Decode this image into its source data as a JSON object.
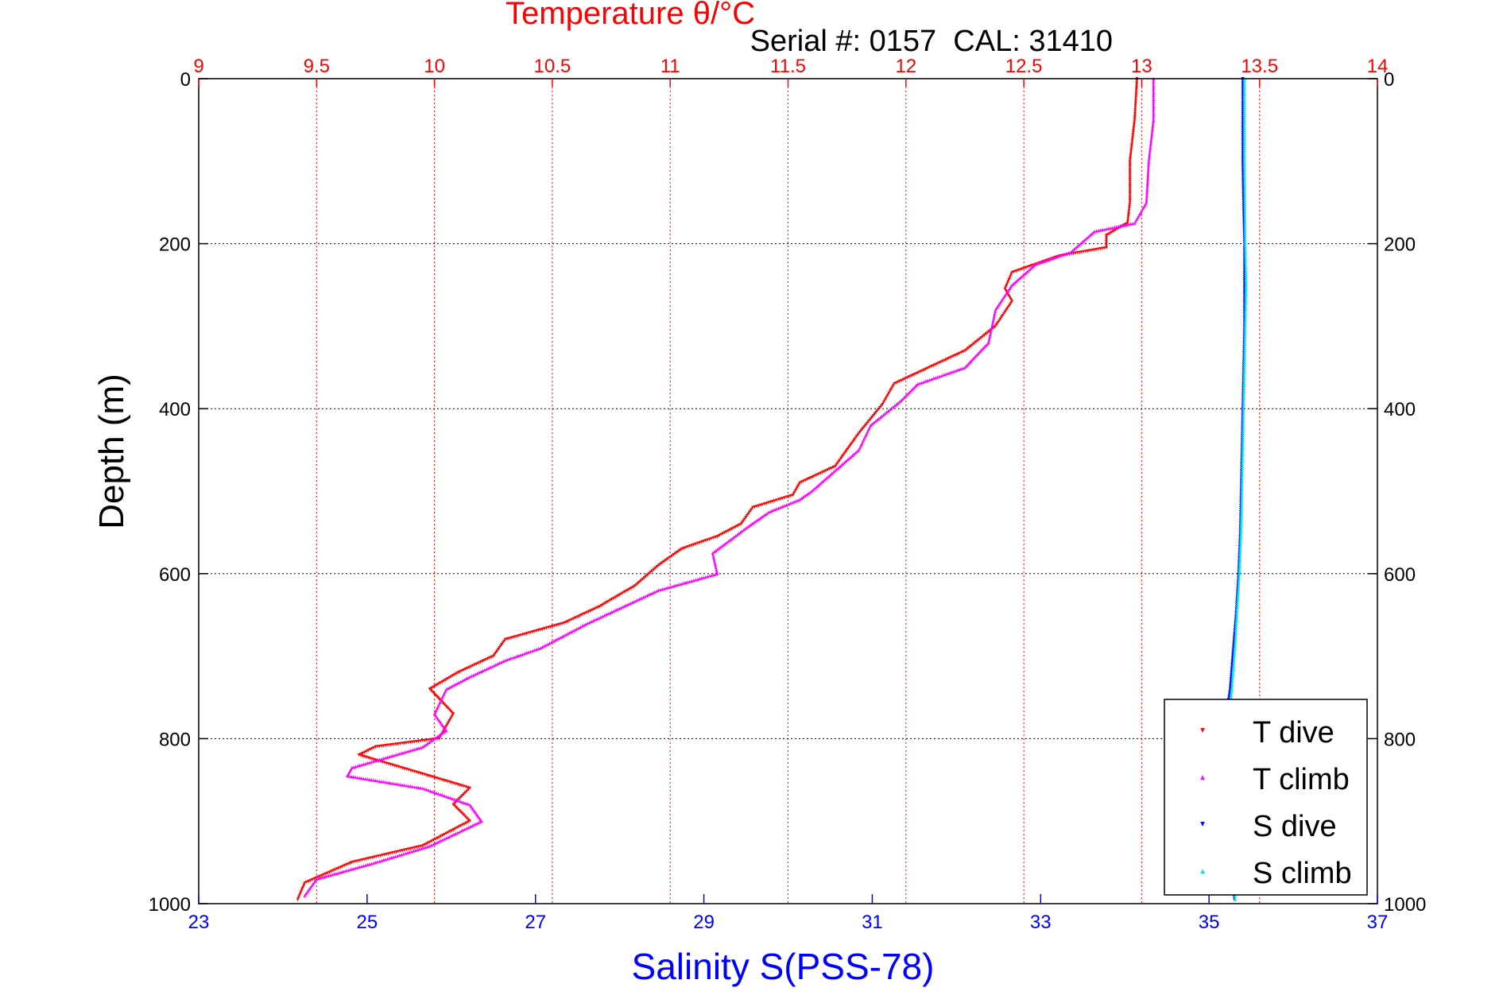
{
  "chart_data": {
    "type": "scatter",
    "title": "Temperature θ/°C",
    "subtitle": "Serial #: 0157  CAL: 31410",
    "ylabel": "Depth (m)",
    "xlabel": "Salinity S(PSS-78)",
    "temperature_axis": {
      "label": "Temperature θ/°C",
      "range": [
        9,
        14
      ],
      "ticks": [
        9,
        9.5,
        10,
        10.5,
        11,
        11.5,
        12,
        12.5,
        13,
        13.5,
        14
      ],
      "tick_labels": [
        "9",
        "9.5",
        "10",
        "10.5",
        "11",
        "11.5",
        "12",
        "12.5",
        "13",
        "13.5",
        "14"
      ],
      "color": "#ff0000"
    },
    "salinity_axis": {
      "label": "Salinity S(PSS-78)",
      "range": [
        23,
        37
      ],
      "ticks": [
        23,
        25,
        27,
        29,
        31,
        33,
        35,
        37
      ],
      "tick_labels": [
        "23",
        "25",
        "27",
        "29",
        "31",
        "33",
        "35",
        "37"
      ],
      "color": "#0000ff"
    },
    "depth_axis": {
      "label": "Depth (m)",
      "range": [
        0,
        1000
      ],
      "reversed": true,
      "ticks": [
        0,
        200,
        400,
        600,
        800,
        1000
      ],
      "tick_labels": [
        "0",
        "200",
        "400",
        "600",
        "800",
        "1000"
      ]
    },
    "grid": true,
    "legend_position": "bottom-right",
    "series": [
      {
        "name": "T dive",
        "axis": "temperature",
        "color": "#ff0000",
        "marker": "triangle-down",
        "points": [
          [
            12.98,
            0
          ],
          [
            12.97,
            50
          ],
          [
            12.95,
            100
          ],
          [
            12.95,
            150
          ],
          [
            12.94,
            175
          ],
          [
            12.85,
            190
          ],
          [
            12.85,
            205
          ],
          [
            12.65,
            215
          ],
          [
            12.45,
            235
          ],
          [
            12.42,
            255
          ],
          [
            12.45,
            270
          ],
          [
            12.38,
            300
          ],
          [
            12.25,
            330
          ],
          [
            12.1,
            350
          ],
          [
            11.95,
            370
          ],
          [
            11.9,
            395
          ],
          [
            11.8,
            430
          ],
          [
            11.7,
            470
          ],
          [
            11.55,
            490
          ],
          [
            11.52,
            505
          ],
          [
            11.35,
            520
          ],
          [
            11.3,
            540
          ],
          [
            11.2,
            555
          ],
          [
            11.05,
            570
          ],
          [
            10.95,
            590
          ],
          [
            10.85,
            615
          ],
          [
            10.7,
            640
          ],
          [
            10.55,
            660
          ],
          [
            10.3,
            680
          ],
          [
            10.25,
            700
          ],
          [
            10.1,
            720
          ],
          [
            9.98,
            740
          ],
          [
            10.08,
            770
          ],
          [
            10.02,
            800
          ],
          [
            9.75,
            810
          ],
          [
            9.68,
            820
          ],
          [
            10.15,
            860
          ],
          [
            10.08,
            880
          ],
          [
            10.15,
            900
          ],
          [
            9.95,
            930
          ],
          [
            9.65,
            950
          ],
          [
            9.45,
            975
          ],
          [
            9.42,
            995
          ]
        ]
      },
      {
        "name": "T climb",
        "axis": "temperature",
        "color": "#ff00ff",
        "marker": "triangle-up",
        "points": [
          [
            13.05,
            0
          ],
          [
            13.05,
            50
          ],
          [
            13.03,
            100
          ],
          [
            13.02,
            150
          ],
          [
            12.97,
            175
          ],
          [
            12.8,
            185
          ],
          [
            12.7,
            210
          ],
          [
            12.55,
            225
          ],
          [
            12.45,
            250
          ],
          [
            12.38,
            280
          ],
          [
            12.35,
            320
          ],
          [
            12.25,
            350
          ],
          [
            12.05,
            370
          ],
          [
            11.98,
            390
          ],
          [
            11.85,
            420
          ],
          [
            11.8,
            450
          ],
          [
            11.72,
            470
          ],
          [
            11.6,
            500
          ],
          [
            11.55,
            510
          ],
          [
            11.42,
            525
          ],
          [
            11.32,
            545
          ],
          [
            11.25,
            560
          ],
          [
            11.18,
            575
          ],
          [
            11.2,
            600
          ],
          [
            10.95,
            620
          ],
          [
            10.8,
            640
          ],
          [
            10.65,
            660
          ],
          [
            10.45,
            690
          ],
          [
            10.3,
            705
          ],
          [
            10.15,
            725
          ],
          [
            10.05,
            740
          ],
          [
            10.0,
            770
          ],
          [
            10.05,
            790
          ],
          [
            9.95,
            810
          ],
          [
            9.65,
            835
          ],
          [
            9.63,
            845
          ],
          [
            9.95,
            860
          ],
          [
            10.15,
            880
          ],
          [
            10.2,
            900
          ],
          [
            9.98,
            930
          ],
          [
            9.75,
            950
          ],
          [
            9.5,
            970
          ],
          [
            9.45,
            990
          ]
        ]
      },
      {
        "name": "S dive",
        "axis": "salinity",
        "color": "#0000ff",
        "marker": "triangle-down",
        "points": [
          [
            35.4,
            0
          ],
          [
            35.4,
            100
          ],
          [
            35.41,
            160
          ],
          [
            35.42,
            200
          ],
          [
            35.42,
            250
          ],
          [
            35.42,
            300
          ],
          [
            35.41,
            350
          ],
          [
            35.4,
            400
          ],
          [
            35.39,
            450
          ],
          [
            35.38,
            500
          ],
          [
            35.37,
            550
          ],
          [
            35.35,
            600
          ],
          [
            35.32,
            650
          ],
          [
            35.28,
            700
          ],
          [
            35.25,
            740
          ],
          [
            35.22,
            760
          ],
          [
            35.2,
            800
          ],
          [
            35.22,
            850
          ],
          [
            35.25,
            900
          ],
          [
            35.28,
            950
          ],
          [
            35.3,
            995
          ]
        ]
      },
      {
        "name": "S climb",
        "axis": "salinity",
        "color": "#00e5ee",
        "marker": "triangle-up",
        "points": [
          [
            35.42,
            0
          ],
          [
            35.42,
            100
          ],
          [
            35.43,
            200
          ],
          [
            35.44,
            250
          ],
          [
            35.43,
            300
          ],
          [
            35.42,
            350
          ],
          [
            35.41,
            400
          ],
          [
            35.4,
            450
          ],
          [
            35.39,
            500
          ],
          [
            35.38,
            550
          ],
          [
            35.36,
            600
          ],
          [
            35.33,
            650
          ],
          [
            35.3,
            700
          ],
          [
            35.27,
            740
          ],
          [
            35.24,
            770
          ],
          [
            35.22,
            800
          ],
          [
            35.24,
            850
          ],
          [
            35.26,
            900
          ],
          [
            35.29,
            950
          ],
          [
            35.31,
            995
          ]
        ]
      }
    ]
  }
}
